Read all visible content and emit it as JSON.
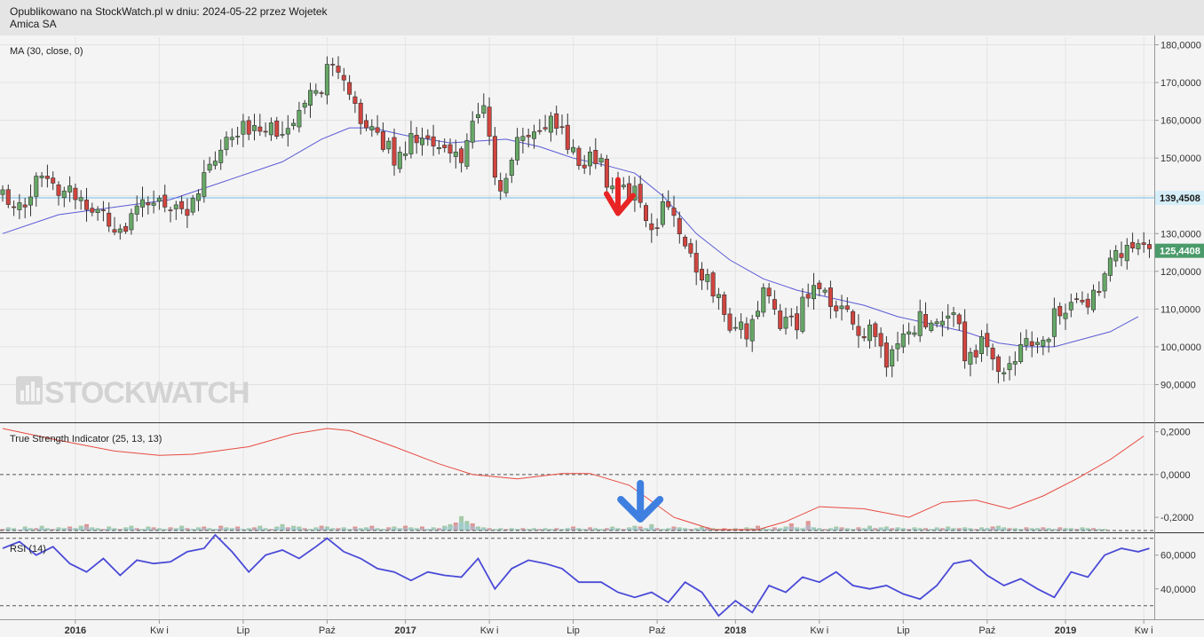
{
  "header": {
    "published": "Opublikowano na StockWatch.pl w dniu: 2024-05-22 przez Wojetek",
    "instrument": "Amica SA"
  },
  "watermark": "STOCKWATCH",
  "colors": {
    "up": "#66a766",
    "down": "#d0453f",
    "ma": "#5a5ad6",
    "tsi": "#e8493f",
    "rsi": "#4a4ad8",
    "hline": "#6fc0e8",
    "price_tag": "#4a9a6a",
    "hline_tag": "#d6eef8"
  },
  "chart_data": [
    {
      "type": "candlestick",
      "title": "MA (30, close, 0)",
      "x_ticks": [
        "2016",
        "Kw i",
        "Lip",
        "Paź",
        "2017",
        "Kw i",
        "Lip",
        "Paź",
        "2018",
        "Kw i",
        "Lip",
        "Paź",
        "2019",
        "Kw i"
      ],
      "ylim": [
        80000,
        182000
      ],
      "y_ticks": [
        "180,0000",
        "170,0000",
        "160,0000",
        "150,0000",
        "140,0000",
        "130,0000",
        "120,0000",
        "110,0000",
        "100,0000",
        "90,0000"
      ],
      "horizontal_line": {
        "value": 139.4508,
        "label": "139,4508"
      },
      "last_price": {
        "value": 125.4408,
        "label": "125,4408"
      },
      "anchors": [
        [
          0,
          140
        ],
        [
          4,
          139
        ],
        [
          8,
          147
        ],
        [
          10,
          143
        ],
        [
          14,
          139
        ],
        [
          18,
          135
        ],
        [
          22,
          131
        ],
        [
          26,
          138
        ],
        [
          30,
          138
        ],
        [
          34,
          137
        ],
        [
          38,
          150
        ],
        [
          42,
          156
        ],
        [
          46,
          160
        ],
        [
          52,
          157
        ],
        [
          56,
          168
        ],
        [
          59,
          174
        ],
        [
          62,
          165
        ],
        [
          66,
          157
        ],
        [
          70,
          151
        ],
        [
          74,
          156
        ],
        [
          78,
          151
        ],
        [
          82,
          151
        ],
        [
          86,
          166
        ],
        [
          88,
          142
        ],
        [
          90,
          143
        ],
        [
          92,
          156
        ],
        [
          95,
          157
        ],
        [
          99,
          160
        ],
        [
          102,
          150
        ],
        [
          107,
          150
        ],
        [
          109,
          140
        ],
        [
          113,
          142
        ],
        [
          116,
          131
        ],
        [
          119,
          140
        ],
        [
          122,
          125
        ],
        [
          125,
          120
        ],
        [
          128,
          113
        ],
        [
          130,
          107
        ],
        [
          133,
          103
        ],
        [
          136,
          114
        ],
        [
          139,
          107
        ],
        [
          142,
          107
        ],
        [
          145,
          118
        ],
        [
          148,
          111
        ],
        [
          151,
          107
        ],
        [
          155,
          103
        ],
        [
          158,
          97
        ],
        [
          161,
          103
        ],
        [
          164,
          107
        ],
        [
          167,
          109
        ],
        [
          170,
          108
        ],
        [
          172,
          99
        ],
        [
          175,
          100
        ],
        [
          177,
          97
        ],
        [
          180,
          93
        ],
        [
          183,
          100
        ],
        [
          186,
          102
        ],
        [
          189,
          110
        ],
        [
          192,
          110
        ],
        [
          195,
          114
        ],
        [
          198,
          124
        ],
        [
          201,
          125
        ],
        [
          204,
          125
        ]
      ],
      "ma_series": {
        "name": "MA (30, close, 0)",
        "points": [
          [
            0,
            130
          ],
          [
            10,
            135
          ],
          [
            20,
            137
          ],
          [
            30,
            139
          ],
          [
            40,
            144
          ],
          [
            50,
            149
          ],
          [
            57,
            155
          ],
          [
            62,
            158
          ],
          [
            66,
            158
          ],
          [
            72,
            156
          ],
          [
            80,
            154
          ],
          [
            90,
            155
          ],
          [
            96,
            153
          ],
          [
            102,
            150
          ],
          [
            108,
            148
          ],
          [
            113,
            146
          ],
          [
            118,
            140
          ],
          [
            124,
            130
          ],
          [
            130,
            123
          ],
          [
            136,
            118
          ],
          [
            142,
            115
          ],
          [
            148,
            113
          ],
          [
            154,
            111
          ],
          [
            160,
            108
          ],
          [
            166,
            106
          ],
          [
            172,
            104
          ],
          [
            178,
            101
          ],
          [
            183,
            100
          ],
          [
            188,
            100
          ],
          [
            193,
            102
          ],
          [
            198,
            104
          ],
          [
            203,
            108
          ]
        ]
      },
      "annotations": [
        {
          "type": "arrow-down",
          "color": "red",
          "at_index": 110,
          "value": 141
        }
      ]
    },
    {
      "type": "line",
      "title": "True Strength Indicator (25, 13, 13)",
      "ylim": [
        -0.27,
        0.24
      ],
      "y_ticks": [
        "0,2000",
        "0,0000",
        "-0,2000"
      ],
      "reference_line": 0,
      "tsi_series": {
        "points": [
          [
            0,
            0.215
          ],
          [
            10,
            0.16
          ],
          [
            20,
            0.11
          ],
          [
            28,
            0.09
          ],
          [
            34,
            0.095
          ],
          [
            44,
            0.13
          ],
          [
            52,
            0.19
          ],
          [
            58,
            0.215
          ],
          [
            62,
            0.205
          ],
          [
            70,
            0.13
          ],
          [
            78,
            0.05
          ],
          [
            84,
            0.0
          ],
          [
            92,
            -0.02
          ],
          [
            100,
            0.005
          ],
          [
            105,
            0.005
          ],
          [
            112,
            -0.05
          ],
          [
            120,
            -0.2
          ],
          [
            127,
            -0.33
          ],
          [
            135,
            -0.29
          ],
          [
            140,
            -0.22
          ],
          [
            146,
            -0.15
          ],
          [
            154,
            -0.16
          ],
          [
            162,
            -0.2
          ],
          [
            168,
            -0.13
          ],
          [
            174,
            -0.12
          ],
          [
            180,
            -0.16
          ],
          [
            186,
            -0.1
          ],
          [
            192,
            -0.02
          ],
          [
            198,
            0.07
          ],
          [
            204,
            0.18
          ]
        ]
      },
      "volume_bars": [
        2,
        4,
        3,
        1,
        5,
        3,
        3,
        6,
        3,
        2,
        4,
        3,
        5,
        3,
        6,
        8,
        4,
        3,
        2,
        5,
        3,
        2,
        4,
        6,
        3,
        2,
        5,
        4,
        3,
        2,
        4,
        3,
        6,
        3,
        2,
        4,
        5,
        3,
        2,
        6,
        4,
        3,
        5,
        2,
        3,
        4,
        6,
        3,
        2,
        5,
        8,
        4,
        6,
        5,
        3,
        2,
        4,
        6,
        5,
        3,
        3,
        4,
        2,
        5,
        3,
        4,
        6,
        3,
        2,
        4,
        5,
        3,
        6,
        4,
        3,
        5,
        2,
        4,
        3,
        6,
        8,
        10,
        18,
        12,
        9,
        5,
        4,
        3,
        2,
        3,
        2,
        3,
        2,
        3,
        2,
        3,
        2,
        3,
        2,
        3,
        2,
        3,
        5,
        3,
        2,
        4,
        3,
        2,
        3,
        5,
        3,
        2,
        4,
        6,
        5,
        3,
        8,
        3,
        2,
        3,
        5,
        4,
        3,
        2,
        3,
        5,
        4,
        3,
        2,
        3,
        2,
        3,
        2,
        4,
        3,
        6,
        3,
        2,
        4,
        3,
        5,
        9,
        4,
        3,
        12,
        4,
        3,
        2,
        3,
        5,
        4,
        3,
        2,
        4,
        3,
        6,
        3,
        4,
        5,
        3,
        4,
        3,
        2,
        4,
        3,
        3,
        2,
        4,
        3,
        5,
        3,
        3,
        4,
        3,
        2,
        4,
        3,
        5,
        6,
        4,
        3,
        3,
        2,
        4,
        3,
        3,
        4,
        3,
        2,
        4,
        3,
        3,
        2,
        4,
        3,
        3,
        2,
        2
      ],
      "annotations": [
        {
          "type": "arrow-down",
          "color": "blue",
          "at_index": 114
        }
      ]
    },
    {
      "type": "line",
      "title": "RSI (14)",
      "ylim": [
        22,
        73
      ],
      "y_ticks": [
        "60,0000",
        "40,0000"
      ],
      "dashed_levels": [
        70,
        30
      ],
      "rsi_series": {
        "points": [
          [
            0,
            64
          ],
          [
            3,
            68
          ],
          [
            6,
            60
          ],
          [
            9,
            65
          ],
          [
            12,
            55
          ],
          [
            15,
            50
          ],
          [
            18,
            58
          ],
          [
            21,
            48
          ],
          [
            24,
            57
          ],
          [
            27,
            55
          ],
          [
            30,
            56
          ],
          [
            33,
            62
          ],
          [
            36,
            64
          ],
          [
            38,
            72
          ],
          [
            41,
            62
          ],
          [
            44,
            50
          ],
          [
            47,
            60
          ],
          [
            50,
            63
          ],
          [
            53,
            58
          ],
          [
            56,
            65
          ],
          [
            58,
            70
          ],
          [
            61,
            62
          ],
          [
            64,
            58
          ],
          [
            67,
            52
          ],
          [
            70,
            50
          ],
          [
            73,
            45
          ],
          [
            76,
            50
          ],
          [
            79,
            48
          ],
          [
            82,
            47
          ],
          [
            85,
            58
          ],
          [
            88,
            40
          ],
          [
            91,
            52
          ],
          [
            94,
            57
          ],
          [
            97,
            55
          ],
          [
            100,
            52
          ],
          [
            103,
            44
          ],
          [
            107,
            44
          ],
          [
            110,
            38
          ],
          [
            113,
            35
          ],
          [
            116,
            38
          ],
          [
            119,
            32
          ],
          [
            122,
            44
          ],
          [
            125,
            38
          ],
          [
            128,
            24
          ],
          [
            131,
            33
          ],
          [
            134,
            26
          ],
          [
            137,
            42
          ],
          [
            140,
            38
          ],
          [
            143,
            47
          ],
          [
            146,
            44
          ],
          [
            149,
            50
          ],
          [
            152,
            42
          ],
          [
            155,
            40
          ],
          [
            158,
            42
          ],
          [
            161,
            37
          ],
          [
            164,
            34
          ],
          [
            167,
            42
          ],
          [
            170,
            55
          ],
          [
            173,
            57
          ],
          [
            176,
            48
          ],
          [
            179,
            42
          ],
          [
            182,
            46
          ],
          [
            185,
            40
          ],
          [
            188,
            35
          ],
          [
            191,
            50
          ],
          [
            194,
            47
          ],
          [
            197,
            60
          ],
          [
            200,
            64
          ],
          [
            203,
            62
          ],
          [
            205,
            64
          ]
        ]
      },
      "x_ticks": [
        "2016",
        "Kw i",
        "Lip",
        "Paź",
        "2017",
        "Kw i",
        "Lip",
        "Paź",
        "2018",
        "Kw i",
        "Lip",
        "Paź",
        "2019",
        "Kw i"
      ]
    }
  ]
}
